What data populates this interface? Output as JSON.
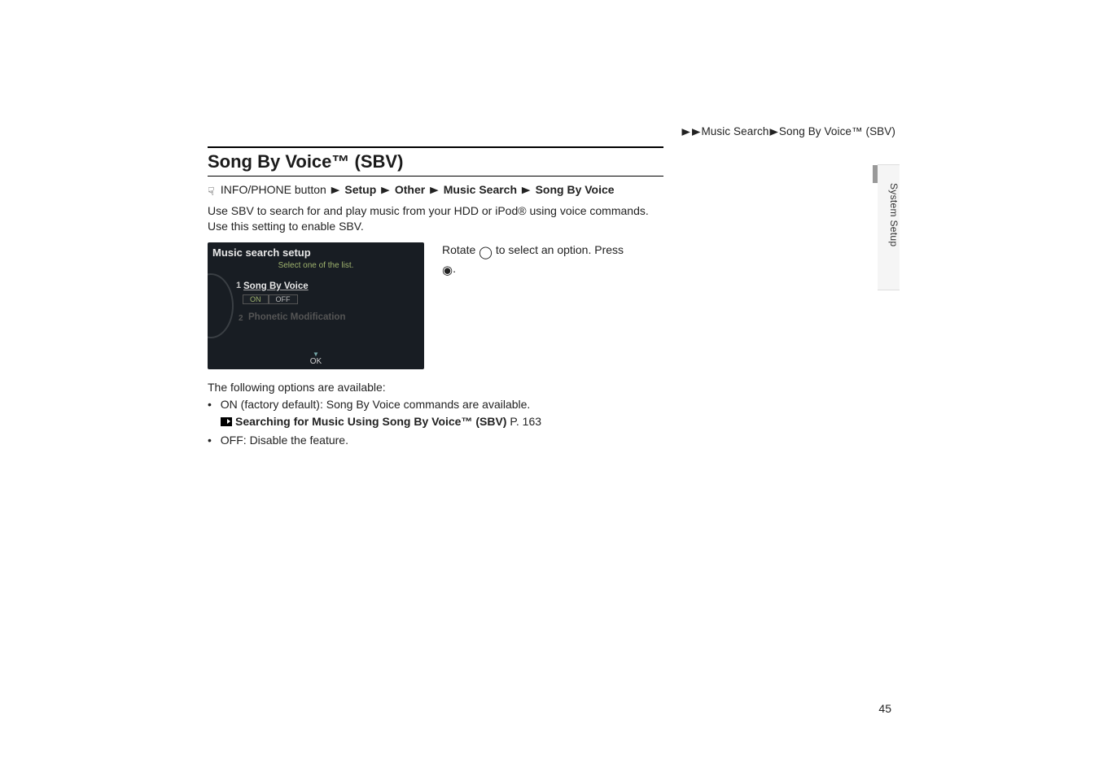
{
  "breadcrumb_top": {
    "seg1": "Music Search",
    "seg2": "Song By Voice™ (SBV)"
  },
  "side_tab": {
    "label": "System Setup"
  },
  "heading": "Song By Voice™ (SBV)",
  "nav": {
    "pre": "INFO/PHONE button",
    "s1": "Setup",
    "s2": "Other",
    "s3": "Music Search",
    "s4": "Song By Voice"
  },
  "lead": "Use SBV to search for and play music from your HDD or iPod® using voice commands. Use this setting to enable SBV.",
  "device": {
    "title": "Music search setup",
    "subtitle": "Select one of the list.",
    "item1_number": "1",
    "item1_label": "Song By Voice",
    "pill_on": "ON",
    "pill_off": "OFF",
    "item2_label": "Phonetic Modification",
    "ok": "OK"
  },
  "instruction": {
    "pre": "Rotate ",
    "mid": " to select an option. Press ",
    "post": "."
  },
  "options_intro": "The following options are available:",
  "opt_on_label": "ON",
  "opt_on_rest": " (factory default): Song By Voice commands are available.",
  "link_text": "Searching for Music Using Song By Voice™ (SBV)",
  "link_page_label": " P. 163",
  "opt_off_label": "OFF",
  "opt_off_rest": ": Disable the feature.",
  "page_number": "45"
}
